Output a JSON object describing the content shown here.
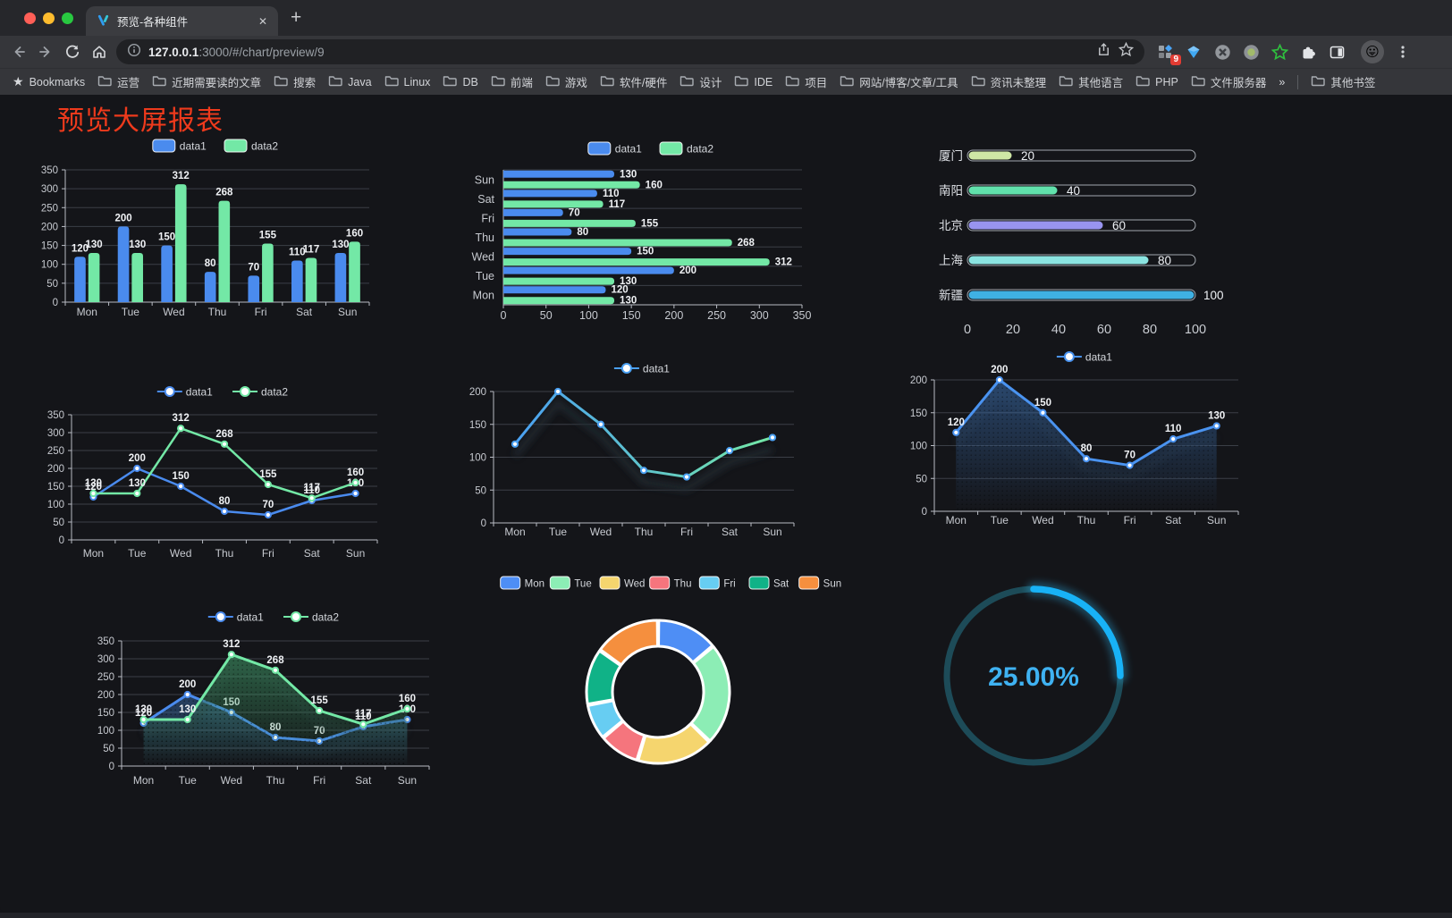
{
  "browser": {
    "traffic_lights": [
      "#ff5f57",
      "#febc2e",
      "#28c840"
    ],
    "tab": {
      "title": "预览-各种组件",
      "close_glyph": "✕",
      "new_tab_glyph": "+"
    },
    "toolbar": {
      "url_host": "127.0.0.1",
      "url_rest": ":3000/#/chart/preview/9",
      "extension_badge": "9"
    },
    "bookmarks": {
      "root_label": "Bookmarks",
      "folders": [
        "运营",
        "近期需要读的文章",
        "搜索",
        "Java",
        "Linux",
        "DB",
        "前端",
        "游戏",
        "软件/硬件",
        "设计",
        "IDE",
        "项目",
        "网站/博客/文章/工具",
        "资讯未整理",
        "其他语言",
        "PHP",
        "文件服务器"
      ],
      "overflow_glyph": "»",
      "other_label": "其他书签"
    }
  },
  "page": {
    "title": "预览大屏报表",
    "title_color": "#ee3a1c",
    "background": "#141519"
  },
  "chart_data": [
    {
      "id": "grouped-bar",
      "type": "bar",
      "categories": [
        "Mon",
        "Tue",
        "Wed",
        "Thu",
        "Fri",
        "Sat",
        "Sun"
      ],
      "series": [
        {
          "name": "data1",
          "color": "#4a8bee",
          "values": [
            120,
            200,
            150,
            80,
            70,
            110,
            130
          ]
        },
        {
          "name": "data2",
          "color": "#73e8a6",
          "values": [
            130,
            130,
            312,
            268,
            155,
            117,
            160
          ]
        }
      ],
      "ylim": [
        0,
        350
      ],
      "ytick_step": 50,
      "legend_position": "top",
      "grid": true
    },
    {
      "id": "grouped-hbar",
      "type": "bar-horizontal",
      "categories": [
        "Mon",
        "Tue",
        "Wed",
        "Thu",
        "Fri",
        "Sat",
        "Sun"
      ],
      "display_order_top_to_bottom": [
        "Sun",
        "Sat",
        "Fri",
        "Thu",
        "Wed",
        "Tue",
        "Mon"
      ],
      "series": [
        {
          "name": "data1",
          "color": "#4a8bee",
          "values": [
            120,
            200,
            150,
            80,
            70,
            110,
            130
          ]
        },
        {
          "name": "data2",
          "color": "#73e8a6",
          "values": [
            130,
            130,
            312,
            268,
            155,
            117,
            160
          ]
        }
      ],
      "xlim": [
        0,
        350
      ],
      "xtick_step": 50,
      "legend_position": "top",
      "grid": true
    },
    {
      "id": "city-progress",
      "type": "progress",
      "items": [
        {
          "label": "厦门",
          "value": 20,
          "color": "#cfe7a5"
        },
        {
          "label": "南阳",
          "value": 40,
          "color": "#61e1ac"
        },
        {
          "label": "北京",
          "value": 60,
          "color": "#9894f0"
        },
        {
          "label": "上海",
          "value": 80,
          "color": "#8be4e1"
        },
        {
          "label": "新疆",
          "value": 100,
          "color": "#3fb1e3"
        }
      ],
      "xlim": [
        0,
        100
      ],
      "xticks": [
        0,
        20,
        40,
        60,
        80,
        100
      ]
    },
    {
      "id": "two-lines",
      "type": "line",
      "categories": [
        "Mon",
        "Tue",
        "Wed",
        "Thu",
        "Fri",
        "Sat",
        "Sun"
      ],
      "series": [
        {
          "name": "data1",
          "color": "#4a8bee",
          "values": [
            120,
            200,
            150,
            80,
            70,
            110,
            130
          ]
        },
        {
          "name": "data2",
          "color": "#73e8a6",
          "values": [
            130,
            130,
            312,
            268,
            155,
            117,
            160
          ]
        }
      ],
      "ylim": [
        0,
        350
      ],
      "ytick_step": 50,
      "show_labels": true,
      "legend_position": "top"
    },
    {
      "id": "gradient-line",
      "type": "line-gradient",
      "categories": [
        "Mon",
        "Tue",
        "Wed",
        "Thu",
        "Fri",
        "Sat",
        "Sun"
      ],
      "series": [
        {
          "name": "data1",
          "color_start": "#4aa0f2",
          "color_end": "#74e8a6",
          "values": [
            120,
            200,
            150,
            80,
            70,
            110,
            130
          ]
        }
      ],
      "ylim": [
        0,
        200
      ],
      "ytick_step": 50,
      "show_labels": false,
      "legend_position": "top",
      "line_shadow": true
    },
    {
      "id": "blue-area",
      "type": "area",
      "categories": [
        "Mon",
        "Tue",
        "Wed",
        "Thu",
        "Fri",
        "Sat",
        "Sun"
      ],
      "series": [
        {
          "name": "data1",
          "color": "#4a93f0",
          "fill_from": "rgba(58,110,175,0.55)",
          "fill_to": "rgba(58,110,175,0)",
          "values": [
            120,
            200,
            150,
            80,
            70,
            110,
            130
          ]
        }
      ],
      "ylim": [
        0,
        200
      ],
      "ytick_step": 50,
      "show_labels": true,
      "legend_position": "top",
      "decal_dots": true
    },
    {
      "id": "two-areas",
      "type": "area-multi",
      "categories": [
        "Mon",
        "Tue",
        "Wed",
        "Thu",
        "Fri",
        "Sat",
        "Sun"
      ],
      "series": [
        {
          "name": "data1",
          "color": "#4a8bee",
          "fill_from": "rgba(58,110,175,0.5)",
          "fill_to": "rgba(58,110,175,0)",
          "values": [
            120,
            200,
            150,
            80,
            70,
            110,
            130
          ]
        },
        {
          "name": "data2",
          "color": "#73e8a6",
          "fill_from": "rgba(62,150,100,0.6)",
          "fill_to": "rgba(62,150,100,0)",
          "values": [
            130,
            130,
            312,
            268,
            155,
            117,
            160
          ]
        }
      ],
      "ylim": [
        0,
        350
      ],
      "ytick_step": 50,
      "show_labels": true,
      "legend_position": "top",
      "decal_dots": true
    },
    {
      "id": "donut",
      "type": "pie",
      "inner_radius_ratio": 0.64,
      "legend_position": "top",
      "items": [
        {
          "label": "Mon",
          "value": 120,
          "color": "#4e8ef5"
        },
        {
          "label": "Tue",
          "value": 200,
          "color": "#8cedb5"
        },
        {
          "label": "Wed",
          "value": 150,
          "color": "#f5d56e"
        },
        {
          "label": "Thu",
          "value": 80,
          "color": "#f5757d"
        },
        {
          "label": "Fri",
          "value": 70,
          "color": "#67cdf2"
        },
        {
          "label": "Sat",
          "value": 110,
          "color": "#10b287"
        },
        {
          "label": "Sun",
          "value": 130,
          "color": "#f58f3e"
        }
      ]
    },
    {
      "id": "gauge",
      "type": "gauge",
      "value_text": "25.00%",
      "percent": 25,
      "track_color": "#1d4b58",
      "arc_color": "#18b2f6",
      "glow_color": "#2ec1ff",
      "text_color": "#3fb2f2"
    }
  ]
}
